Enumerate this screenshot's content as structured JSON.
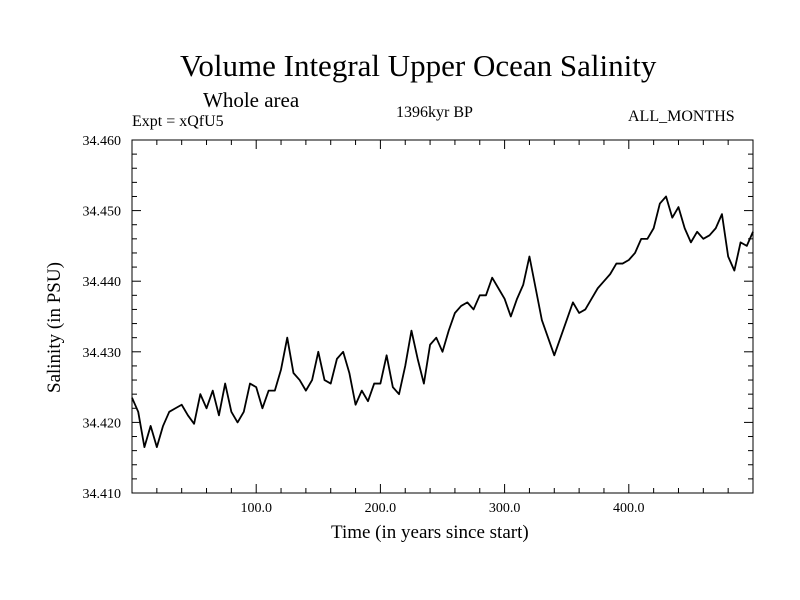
{
  "chart_data": {
    "type": "line",
    "title": "Volume Integral Upper Ocean Salinity",
    "subtitle": "Whole area",
    "expt_label": "Expt = xQfU5",
    "period_label": "1396kyr BP",
    "months_label": "ALL_MONTHS",
    "xlabel": "Time (in years since start)",
    "ylabel": "Salinity (in PSU)",
    "xlim": [
      0,
      500
    ],
    "ylim": [
      34.41,
      34.46
    ],
    "x_ticks": [
      100.0,
      200.0,
      300.0,
      400.0
    ],
    "x_tick_labels": [
      "100.0",
      "200.0",
      "300.0",
      "400.0"
    ],
    "y_ticks": [
      34.41,
      34.42,
      34.43,
      34.44,
      34.45,
      34.46
    ],
    "y_tick_labels": [
      "34.410",
      "34.420",
      "34.430",
      "34.440",
      "34.450",
      "34.460"
    ],
    "grid": false,
    "series": [
      {
        "name": "Salinity",
        "x": [
          0,
          5,
          10,
          15,
          20,
          25,
          30,
          35,
          40,
          45,
          50,
          55,
          60,
          65,
          70,
          75,
          80,
          85,
          90,
          95,
          100,
          105,
          110,
          115,
          120,
          125,
          130,
          135,
          140,
          145,
          150,
          155,
          160,
          165,
          170,
          175,
          180,
          185,
          190,
          195,
          200,
          205,
          210,
          215,
          220,
          225,
          230,
          235,
          240,
          245,
          250,
          255,
          260,
          265,
          270,
          275,
          280,
          285,
          290,
          295,
          300,
          305,
          310,
          315,
          320,
          325,
          330,
          335,
          340,
          345,
          350,
          355,
          360,
          365,
          370,
          375,
          380,
          385,
          390,
          395,
          400,
          405,
          410,
          415,
          420,
          425,
          430,
          435,
          440,
          445,
          450,
          455,
          460,
          465,
          470,
          475,
          480,
          485,
          490,
          495,
          500
        ],
        "values": [
          34.4235,
          34.4215,
          34.4165,
          34.4195,
          34.4165,
          34.4195,
          34.4215,
          34.422,
          34.4225,
          34.421,
          34.4198,
          34.424,
          34.422,
          34.4245,
          34.421,
          34.4255,
          34.4215,
          34.42,
          34.4215,
          34.4255,
          34.425,
          34.422,
          34.4245,
          34.4245,
          34.4275,
          34.432,
          34.427,
          34.426,
          34.4245,
          34.426,
          34.43,
          34.426,
          34.4255,
          34.429,
          34.43,
          34.427,
          34.4225,
          34.4245,
          34.423,
          34.4255,
          34.4255,
          34.4295,
          34.425,
          34.424,
          34.428,
          34.433,
          34.429,
          34.4255,
          34.431,
          34.432,
          34.43,
          34.433,
          34.4355,
          34.4365,
          34.437,
          34.436,
          34.438,
          34.438,
          34.4405,
          34.439,
          34.4375,
          34.435,
          34.4375,
          34.4395,
          34.4435,
          34.439,
          34.4345,
          34.432,
          34.4295,
          34.432,
          34.4345,
          34.437,
          34.4355,
          34.436,
          34.4375,
          34.439,
          34.44,
          34.441,
          34.4425,
          34.4425,
          34.443,
          34.444,
          34.446,
          34.446,
          34.4475,
          34.451,
          34.452,
          34.449,
          34.4505,
          34.4475,
          34.4455,
          34.447,
          34.446,
          34.4465,
          34.4475,
          34.4495,
          34.4435,
          34.4415,
          34.4455,
          34.445,
          34.447
        ]
      }
    ]
  }
}
